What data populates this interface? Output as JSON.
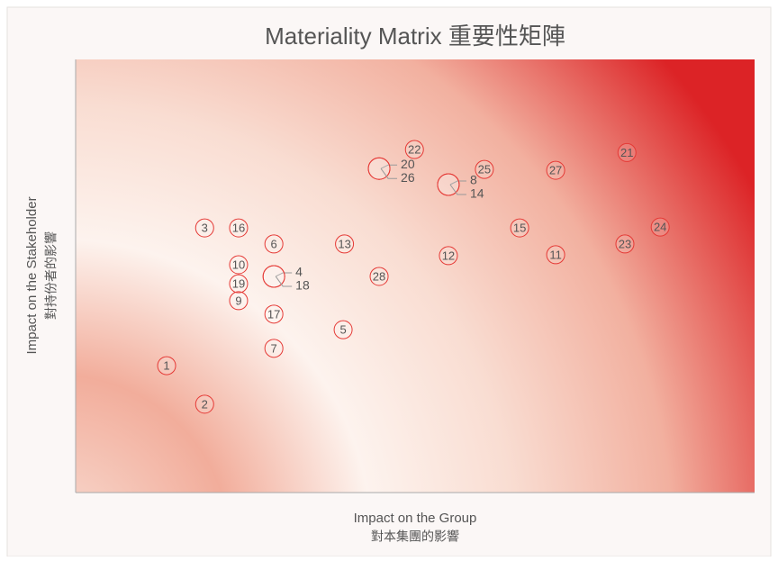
{
  "chart_data": {
    "type": "scatter",
    "title": "Materiality Matrix 重要性矩陣",
    "x_label": "Impact on the Group",
    "x_label_zh": "對本集團的影響",
    "y_label": "Impact on the Stakeholder",
    "y_label_zh": "對持份者的影響",
    "labels": [
      "1",
      "2",
      "3",
      "16",
      "10",
      "19",
      "9",
      "6",
      "17",
      "7",
      "4",
      "18",
      "13",
      "5",
      "28",
      "20",
      "26",
      "22",
      "8",
      "14",
      "12",
      "25",
      "15",
      "27",
      "11",
      "21",
      "23",
      "24"
    ],
    "x": [
      13.4,
      19.0,
      19.0,
      24.0,
      24.0,
      24.0,
      24.0,
      29.2,
      29.2,
      29.2,
      29.2,
      29.2,
      39.6,
      39.4,
      44.7,
      44.7,
      44.7,
      49.9,
      54.9,
      54.9,
      54.9,
      60.2,
      65.4,
      70.7,
      70.7,
      81.2,
      80.9,
      86.1
    ],
    "y": [
      29.3,
      20.4,
      61.1,
      61.1,
      52.6,
      48.2,
      44.3,
      57.4,
      41.2,
      33.3,
      49.9,
      49.9,
      57.4,
      37.6,
      49.9,
      74.8,
      74.8,
      79.2,
      71.1,
      71.1,
      54.7,
      74.6,
      61.1,
      74.4,
      54.9,
      78.5,
      57.4,
      61.3
    ],
    "color": "#e53935",
    "xlim": [
      0,
      100
    ],
    "ylim": [
      0,
      100
    ]
  }
}
